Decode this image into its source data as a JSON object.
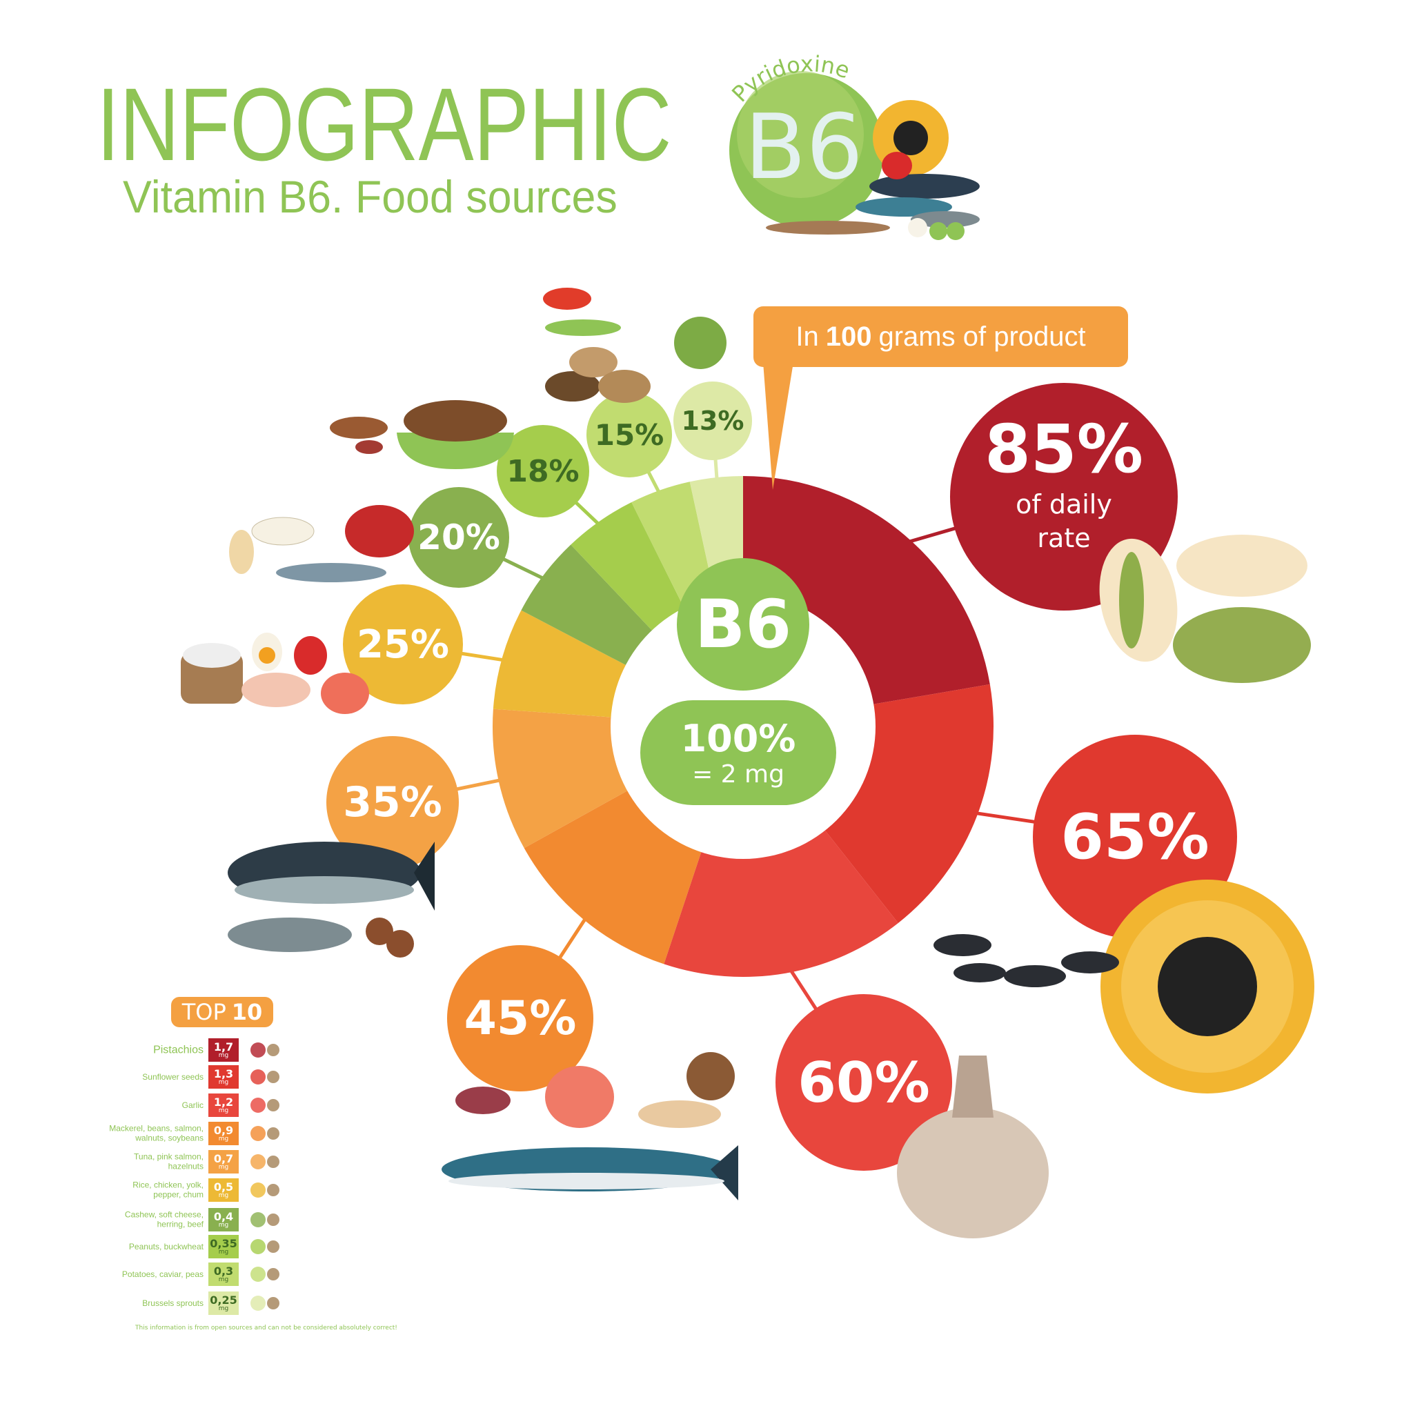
{
  "header": {
    "title": "INFOGRAPHIC",
    "subtitle": "Vitamin B6. Food sources",
    "logo_text": "B6",
    "logo_arc": "Pyridoxine"
  },
  "callout": {
    "prefix": "In",
    "bold": "100",
    "suffix": "grams of  product"
  },
  "center": {
    "label": "B6",
    "percent": "100%",
    "equals": "= 2 mg"
  },
  "colors": {
    "title_green": "#8fc455",
    "center_green": "#8fc455"
  },
  "chart_data": {
    "type": "pie",
    "style": "donut",
    "unit": "% of daily rate",
    "categories": [
      "Pistachios",
      "Sunflower seeds",
      "Garlic",
      "Mackerel, beans, salmon, walnuts, soybeans",
      "Tuna, pink salmon, hazelnuts",
      "Rice, chicken, yolk, pepper, chum",
      "Cashew, soft cheese, herring, beef",
      "Peanuts, buckwheat",
      "Potatoes, caviar, peas",
      "Brussels sprouts"
    ],
    "values": [
      85,
      65,
      60,
      45,
      35,
      25,
      20,
      18,
      15,
      13
    ],
    "labels": [
      "85%",
      "65%",
      "60%",
      "45%",
      "35%",
      "25%",
      "20%",
      "18%",
      "15%",
      "13%"
    ],
    "first_note": "of daily\nrate",
    "colors": [
      "#b11f2b",
      "#e0392f",
      "#e8463d",
      "#f28a30",
      "#f4a245",
      "#edb935",
      "#89b04f",
      "#a5cd4c",
      "#c1dc70",
      "#dde9a6"
    ],
    "label_colors": [
      "#ffffff",
      "#ffffff",
      "#ffffff",
      "#ffffff",
      "#ffffff",
      "#ffffff",
      "#ffffff",
      "#3e6b23",
      "#3e6b23",
      "#3e6b23"
    ]
  },
  "top10": {
    "title_prefix": "TOP",
    "title_bold": "10",
    "items": [
      {
        "name": "Pistachios",
        "value": "1,7",
        "unit": "mg"
      },
      {
        "name": "Sunflower seeds",
        "value": "1,3",
        "unit": "mg"
      },
      {
        "name": "Garlic",
        "value": "1,2",
        "unit": "mg"
      },
      {
        "name": "Mackerel, beans, salmon,\nwalnuts, soybeans",
        "value": "0,9",
        "unit": "mg"
      },
      {
        "name": "Tuna, pink salmon,\nhazelnuts",
        "value": "0,7",
        "unit": "mg"
      },
      {
        "name": "Rice, chicken, yolk,\npepper, chum",
        "value": "0,5",
        "unit": "mg"
      },
      {
        "name": "Cashew, soft cheese,\nherring, beef",
        "value": "0,4",
        "unit": "mg"
      },
      {
        "name": "Peanuts, buckwheat",
        "value": "0,35",
        "unit": "mg"
      },
      {
        "name": "Potatoes, caviar, peas",
        "value": "0,3",
        "unit": "mg"
      },
      {
        "name": "Brussels sprouts",
        "value": "0,25",
        "unit": "mg"
      }
    ],
    "footer": "This information is from open sources and can not be considered absolutely correct!"
  }
}
